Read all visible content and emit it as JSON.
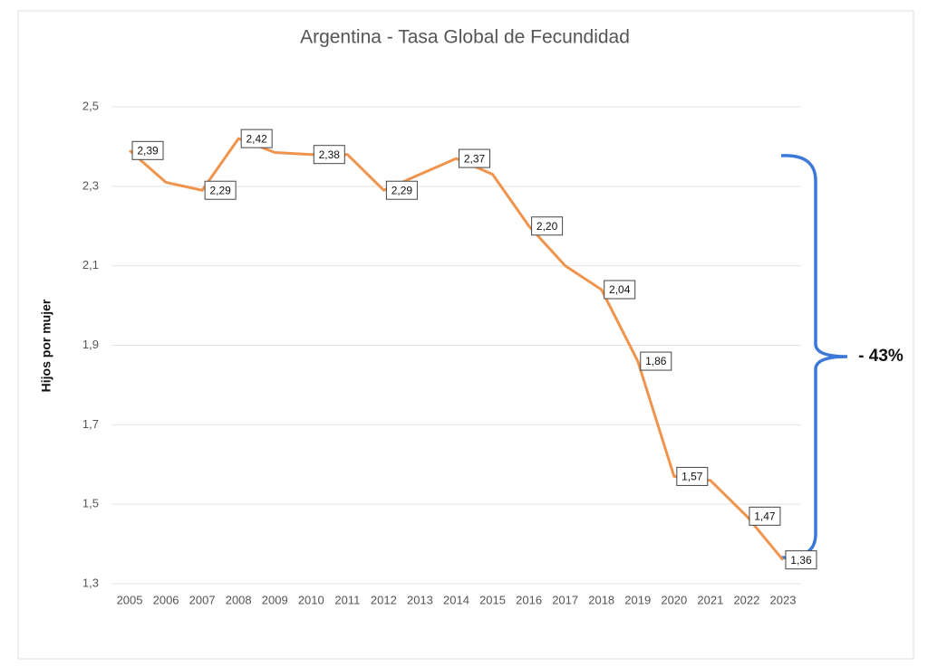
{
  "chart_data": {
    "type": "line",
    "title": "Argentina - Tasa Global de Fecundidad",
    "y_label": "Hijos por mujer",
    "categories": [
      "2005",
      "2006",
      "2007",
      "2008",
      "2009",
      "2010",
      "2011",
      "2012",
      "2013",
      "2014",
      "2015",
      "2016",
      "2017",
      "2018",
      "2019",
      "2020",
      "2021",
      "2022",
      "2023"
    ],
    "series": [
      {
        "name": "Tasa Global de Fecundidad",
        "color": "#f0944d",
        "values": [
          2.39,
          2.31,
          2.29,
          2.42,
          2.385,
          2.38,
          2.38,
          2.29,
          2.33,
          2.37,
          2.33,
          2.2,
          2.1,
          2.04,
          1.86,
          1.57,
          1.56,
          1.47,
          1.36
        ],
        "value_labels": [
          "2,39",
          null,
          "2,29",
          "2,42",
          null,
          "2,38",
          null,
          "2,29",
          null,
          "2,37",
          null,
          "2,20",
          null,
          "2,04",
          "1,86",
          "1,57",
          null,
          "1,47",
          "1,36"
        ]
      }
    ],
    "ylim": [
      1.3,
      2.5
    ],
    "yticks": [
      {
        "value": 1.3,
        "label": "1,3"
      },
      {
        "value": 1.5,
        "label": "1,5"
      },
      {
        "value": 1.7,
        "label": "1,7"
      },
      {
        "value": 1.9,
        "label": "1,9"
      },
      {
        "value": 2.1,
        "label": "2,1"
      },
      {
        "value": 2.3,
        "label": "2,3"
      },
      {
        "value": 2.5,
        "label": "2,5"
      }
    ],
    "grid": true,
    "annotation": "- 43%"
  }
}
